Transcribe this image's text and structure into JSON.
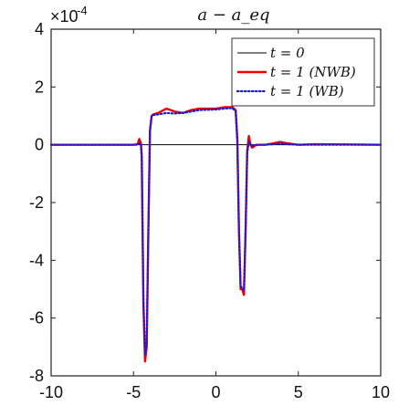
{
  "chart_data": {
    "type": "line",
    "title": "a − a_eq",
    "xlabel": "",
    "ylabel": "",
    "xlim": [
      -10,
      10
    ],
    "ylim": [
      -8,
      4
    ],
    "y_exponent_label": "×10",
    "y_exponent_power": "-4",
    "xticks": [
      -10,
      -5,
      0,
      5,
      10
    ],
    "yticks": [
      -8,
      -6,
      -4,
      -2,
      0,
      2,
      4
    ],
    "xtick_labels": [
      "-10",
      "-5",
      "0",
      "5",
      "10"
    ],
    "ytick_labels": [
      "-8",
      "-6",
      "-4",
      "-2",
      "0",
      "2",
      "4"
    ],
    "grid": false,
    "legend_position": "top-right",
    "series": [
      {
        "name": "t = 0",
        "color": "#000000",
        "style": "solid",
        "x": [
          -10,
          10
        ],
        "y": [
          0,
          0
        ]
      },
      {
        "name": "t = 1 (NWB)",
        "color": "#ee0000",
        "style": "solid",
        "x": [
          -10,
          -5,
          -4.75,
          -4.65,
          -4.55,
          -4.5,
          -4.4,
          -4.3,
          -4.2,
          -4.1,
          -4.0,
          -3.9,
          -3.8,
          -3.5,
          -3.0,
          -2.5,
          -2.0,
          -1.5,
          -1.0,
          0,
          0.5,
          1.0,
          1.2,
          1.3,
          1.4,
          1.5,
          1.6,
          1.7,
          1.8,
          1.9,
          2.0,
          2.1,
          2.2,
          2.4,
          2.6,
          3.0,
          3.5,
          3.9,
          4.3,
          5.0,
          6.0,
          10
        ],
        "y": [
          0,
          0,
          0.02,
          0.2,
          0.05,
          -0.4,
          -5.5,
          -7.5,
          -7.0,
          -3.0,
          0.5,
          1.0,
          1.05,
          1.1,
          1.25,
          1.15,
          1.1,
          1.2,
          1.25,
          1.25,
          1.3,
          1.3,
          1.2,
          0.2,
          -3.0,
          -5.0,
          -5.0,
          -5.2,
          -3.0,
          -0.2,
          0.3,
          0.0,
          -0.1,
          -0.02,
          0.0,
          0.0,
          0.05,
          0.1,
          0.05,
          0.0,
          0.02,
          0
        ]
      },
      {
        "name": "t = 1 (WB)",
        "color": "#1a1adb",
        "style": "dotted",
        "x": [
          -10,
          -5,
          -4.75,
          -4.65,
          -4.55,
          -4.5,
          -4.4,
          -4.3,
          -4.2,
          -4.1,
          -4.0,
          -3.9,
          -3.8,
          -3.5,
          -3.0,
          -2.5,
          -2.0,
          -1.5,
          -1.0,
          0,
          0.5,
          1.0,
          1.2,
          1.3,
          1.4,
          1.5,
          1.6,
          1.7,
          1.8,
          1.9,
          2.0,
          2.1,
          2.2,
          2.4,
          2.6,
          3.0,
          3.5,
          3.9,
          4.3,
          5.0,
          6.0,
          10
        ],
        "y": [
          0,
          0,
          0.0,
          0.05,
          0.0,
          -0.5,
          -5.3,
          -7.3,
          -6.9,
          -3.0,
          0.5,
          1.0,
          1.03,
          1.05,
          1.1,
          1.08,
          1.1,
          1.15,
          1.2,
          1.22,
          1.25,
          1.27,
          1.15,
          0.1,
          -3.0,
          -4.9,
          -4.95,
          -5.05,
          -3.0,
          -0.3,
          0.1,
          0.0,
          -0.05,
          0.0,
          0.0,
          0.0,
          0.02,
          0.05,
          0.02,
          0.0,
          0.0,
          0
        ]
      }
    ],
    "legend_labels": [
      "t = 0",
      "t = 1 (NWB)",
      "t = 1 (WB)"
    ]
  }
}
